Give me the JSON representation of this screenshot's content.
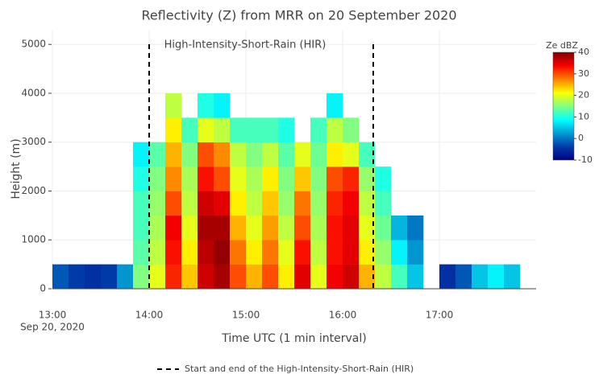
{
  "chart_data": {
    "type": "heatmap",
    "title": "Reflectivity (Z) from MRR on 20 September 2020",
    "x_label": "Time UTC (1 min interval)",
    "y_label": "Height (m)",
    "x_date_label": "Sep 20, 2020",
    "colorbar_title": "Ze dBZ",
    "x": [
      "2020-09-20 13:05",
      "2020-09-20 13:15",
      "2020-09-20 13:25",
      "2020-09-20 13:35",
      "2020-09-20 13:45",
      "2020-09-20 13:55",
      "2020-09-20 14:05",
      "2020-09-20 14:15",
      "2020-09-20 14:25",
      "2020-09-20 14:35",
      "2020-09-20 14:45",
      "2020-09-20 14:55",
      "2020-09-20 15:05",
      "2020-09-20 15:15",
      "2020-09-20 15:25",
      "2020-09-20 15:35",
      "2020-09-20 15:45",
      "2020-09-20 15:55",
      "2020-09-20 16:05",
      "2020-09-20 16:15",
      "2020-09-20 16:25",
      "2020-09-20 16:35",
      "2020-09-20 16:45",
      "2020-09-20 16:55",
      "2020-09-20 17:05",
      "2020-09-20 17:15",
      "2020-09-20 17:25",
      "2020-09-20 17:35",
      "2020-09-20 17:45",
      "2020-09-20 17:55"
    ],
    "y": [
      250,
      750,
      1250,
      1750,
      2250,
      2750,
      3250,
      3750
    ],
    "z": [
      [
        -2,
        -4,
        -5,
        -4,
        2,
        15,
        20,
        32,
        24,
        36,
        38,
        30,
        25,
        30,
        22,
        35,
        20,
        34,
        36,
        25,
        18,
        12,
        5,
        null,
        -5,
        -2,
        5,
        8,
        5,
        null
      ],
      [
        null,
        null,
        null,
        null,
        null,
        13,
        18,
        33,
        22,
        37,
        39,
        28,
        22,
        28,
        20,
        33,
        18,
        33,
        35,
        22,
        16,
        8,
        2,
        null,
        null,
        null,
        null,
        null,
        null,
        null
      ],
      [
        null,
        null,
        null,
        null,
        null,
        12,
        17,
        34,
        20,
        38,
        38,
        25,
        20,
        26,
        18,
        30,
        17,
        33,
        35,
        20,
        14,
        4,
        0,
        null,
        null,
        null,
        null,
        null,
        null,
        null
      ],
      [
        null,
        null,
        null,
        null,
        null,
        12,
        16,
        30,
        18,
        36,
        35,
        22,
        18,
        24,
        16,
        28,
        16,
        32,
        34,
        18,
        12,
        null,
        null,
        null,
        null,
        null,
        null,
        null,
        null,
        null
      ],
      [
        null,
        null,
        null,
        null,
        null,
        10,
        15,
        27,
        17,
        33,
        30,
        20,
        17,
        22,
        15,
        24,
        15,
        30,
        32,
        16,
        10,
        null,
        null,
        null,
        null,
        null,
        null,
        null,
        null,
        null
      ],
      [
        null,
        null,
        null,
        null,
        null,
        8,
        13,
        25,
        15,
        30,
        27,
        18,
        15,
        18,
        13,
        20,
        14,
        22,
        20,
        12,
        null,
        null,
        null,
        null,
        null,
        null,
        null,
        null,
        null,
        null
      ],
      [
        null,
        null,
        null,
        null,
        null,
        null,
        null,
        22,
        12,
        20,
        18,
        12,
        12,
        12,
        10,
        null,
        12,
        18,
        15,
        null,
        null,
        null,
        null,
        null,
        null,
        null,
        null,
        null,
        null,
        null
      ],
      [
        null,
        null,
        null,
        null,
        null,
        null,
        null,
        18,
        null,
        10,
        8,
        null,
        null,
        null,
        null,
        null,
        null,
        8,
        null,
        null,
        null,
        null,
        null,
        null,
        null,
        null,
        null,
        null,
        null,
        null
      ]
    ],
    "x_step_minutes": 10,
    "y_step": 500,
    "xlim": [
      "2020-09-20 13:00",
      "2020-09-20 18:00"
    ],
    "xticks": [
      {
        "value": "2020-09-20 13:00",
        "label": "13:00"
      },
      {
        "value": "2020-09-20 14:00",
        "label": "14:00"
      },
      {
        "value": "2020-09-20 15:00",
        "label": "15:00"
      },
      {
        "value": "2020-09-20 16:00",
        "label": "16:00"
      },
      {
        "value": "2020-09-20 17:00",
        "label": "17:00"
      }
    ],
    "ylim": [
      0,
      5300
    ],
    "yticks": [
      0,
      1000,
      2000,
      3000,
      4000,
      5000
    ],
    "zlim": [
      -10,
      40
    ],
    "zticks": [
      -10,
      0,
      10,
      20,
      30,
      40
    ],
    "colorscale": [
      {
        "value": -10,
        "color": "#000083"
      },
      {
        "value": -3.75,
        "color": "#003caa"
      },
      {
        "value": 8.75,
        "color": "#05ffff"
      },
      {
        "value": 21.25,
        "color": "#ffff00"
      },
      {
        "value": 33.75,
        "color": "#fa0000"
      },
      {
        "value": 40,
        "color": "#800000"
      }
    ],
    "grid": true,
    "events": {
      "name": "Start and end of the High-Intensity-Short-Rain (HIR)",
      "annotation": "High-Intensity-Short-Rain (HIR)",
      "x": [
        "2020-09-20 14:00",
        "2020-09-20 16:19"
      ],
      "color": "#000000"
    },
    "legend_position": "bottom"
  }
}
